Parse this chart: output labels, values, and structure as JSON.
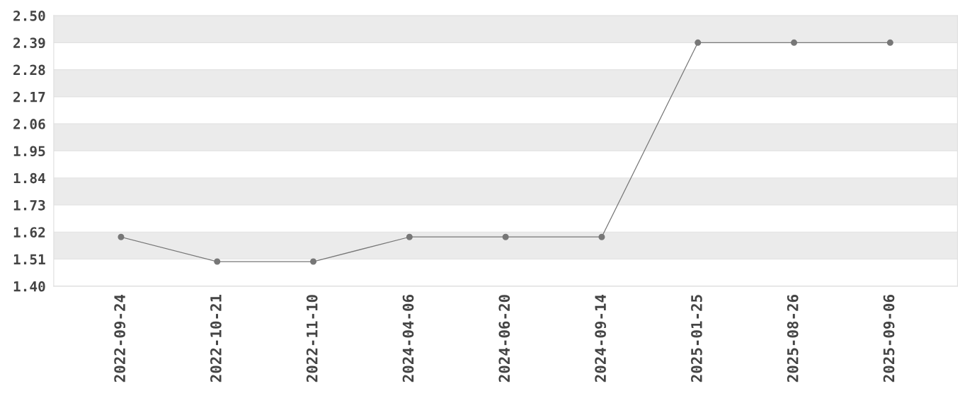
{
  "chart_data": {
    "type": "line",
    "categories": [
      "2022-09-24",
      "2022-10-21",
      "2022-11-10",
      "2024-04-06",
      "2024-06-20",
      "2024-09-14",
      "2025-01-25",
      "2025-08-26",
      "2025-09-06"
    ],
    "series": [
      {
        "color": "#777777",
        "values": [
          1.6,
          1.5,
          1.5,
          1.6,
          1.6,
          1.6,
          2.39,
          2.39,
          2.39
        ]
      }
    ],
    "ylim": [
      1.4,
      2.5
    ],
    "yticks": [
      {
        "value": 1.4,
        "label": "1.40"
      },
      {
        "value": 1.51,
        "label": "1.51"
      },
      {
        "value": 1.62,
        "label": "1.62"
      },
      {
        "value": 1.73,
        "label": "1.73"
      },
      {
        "value": 1.84,
        "label": "1.84"
      },
      {
        "value": 1.95,
        "label": "1.95"
      },
      {
        "value": 2.06,
        "label": "2.06"
      },
      {
        "value": 2.17,
        "label": "2.17"
      },
      {
        "value": 2.28,
        "label": "2.28"
      },
      {
        "value": 2.39,
        "label": "2.39"
      },
      {
        "value": 2.5,
        "label": "2.50"
      }
    ],
    "grid": "y",
    "marker": "circle",
    "line_style": "solid"
  }
}
